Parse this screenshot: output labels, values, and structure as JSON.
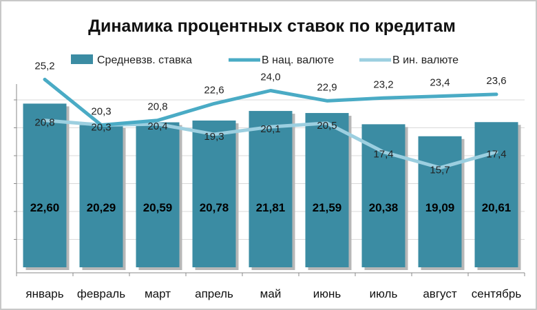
{
  "chart_data": {
    "type": "bar",
    "title": "Динамика процентных ставок по кредитам",
    "categories": [
      "январь",
      "февраль",
      "март",
      "апрель",
      "май",
      "июнь",
      "июль",
      "август",
      "сентябрь"
    ],
    "series": [
      {
        "name": "Средневзв. ставка",
        "type": "bar",
        "values": [
          22.6,
          20.29,
          20.59,
          20.78,
          21.81,
          21.59,
          20.38,
          19.09,
          20.61
        ],
        "labels": [
          "22,60",
          "20,29",
          "20,59",
          "20,78",
          "21,81",
          "21,59",
          "20,38",
          "19,09",
          "20,61"
        ],
        "color": "#3b8ca3"
      },
      {
        "name": "В нац. валюте",
        "type": "line",
        "values": [
          25.2,
          20.3,
          20.8,
          22.6,
          24.0,
          22.9,
          23.2,
          23.4,
          23.6
        ],
        "labels": [
          "25,2",
          "20,3",
          "20,8",
          "22,6",
          "24,0",
          "22,9",
          "23,2",
          "23,4",
          "23,6"
        ],
        "color": "#4aabc5"
      },
      {
        "name": "В ин. валюте",
        "type": "line",
        "values": [
          20.8,
          20.3,
          20.4,
          19.3,
          20.1,
          20.5,
          17.4,
          15.7,
          17.4
        ],
        "labels": [
          "20,8",
          "20,3",
          "20,4",
          "19,3",
          "20,1",
          "20,5",
          "17,4",
          "15,7",
          "17,4"
        ],
        "color": "#9ccfe0"
      }
    ],
    "ylim": [
      5,
      32
    ],
    "grid": true,
    "legend": "top",
    "axis_color": "#888888",
    "grid_color": "#d9d9d9"
  }
}
